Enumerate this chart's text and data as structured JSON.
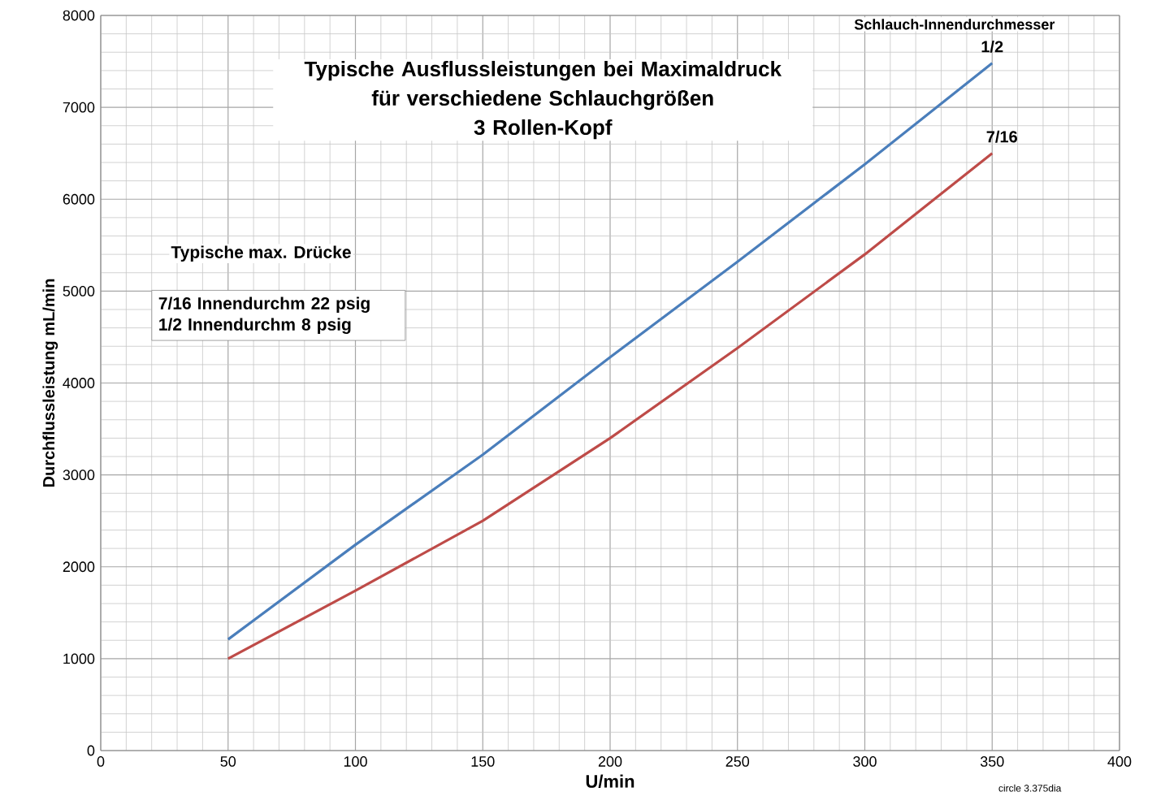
{
  "chart_data": {
    "type": "line",
    "title": "Typische Ausflussleistungen bei Maximaldruck für verschiedene Schlauchgrößen",
    "subtitle": "3 Rollen-Kopf",
    "xlabel": "U/min",
    "ylabel": "Durchflussleistung mL/min",
    "legend_title": "Schlauch-Innendurchmesser",
    "x": [
      50,
      100,
      150,
      200,
      250,
      300,
      350
    ],
    "series": [
      {
        "name": "1/2",
        "color": "#4a7ebb",
        "values": [
          1210,
          2240,
          3220,
          4280,
          5320,
          6380,
          7480
        ]
      },
      {
        "name": "7/16",
        "color": "#be4b48",
        "values": [
          1000,
          1740,
          2500,
          3400,
          4380,
          5400,
          6500
        ]
      }
    ],
    "xlim": [
      0,
      400
    ],
    "ylim": [
      0,
      8000
    ],
    "xticks": [
      0,
      50,
      100,
      150,
      200,
      250,
      300,
      350,
      400
    ],
    "yticks": [
      0,
      1000,
      2000,
      3000,
      4000,
      5000,
      6000,
      7000,
      8000
    ],
    "grid": true,
    "marker": "none",
    "line_style": "solid",
    "annotations": [
      "Typische max. Drücke",
      "7/16 Innendurchm 22 psig",
      "1/2 Innendurchm 8 psig",
      "circle 3.375dia"
    ]
  }
}
